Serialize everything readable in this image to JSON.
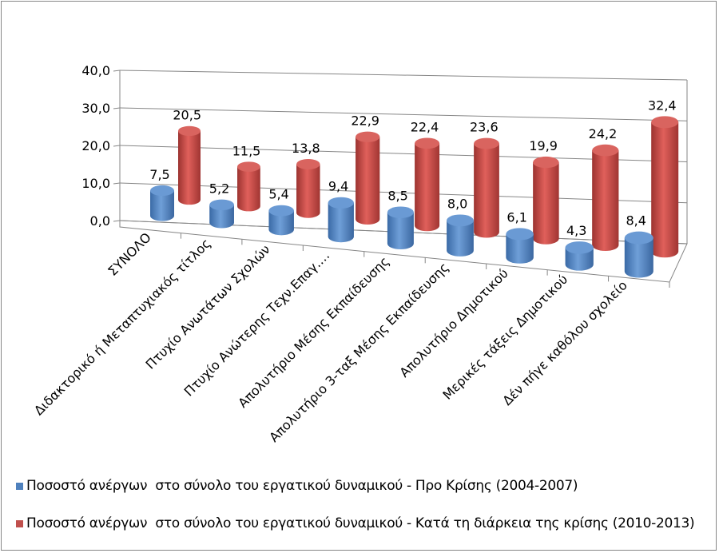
{
  "chart_data": {
    "type": "bar",
    "style": "3d-cylinder",
    "categories": [
      "ΣΥΝΟΛΟ",
      "Διδακτορικό ή Μεταπτυχιακός τίτλος",
      "Πτυχίο Ανωτάτων Σχολών",
      "Πτυχίο Ανώτερης Τεχν.Επαγ.…",
      "Απολυτήριο Μέσης Εκπαίδευσης",
      "Απολυτήριο 3-ταξ Μέσης Εκπαίδευσης",
      "Απολυτήριο Δημοτικού",
      "Μερικές τάξεις Δημοτικού",
      "Δέν πήγε καθόλου σχολείο"
    ],
    "series": [
      {
        "name": "Ποσοστό ανέργων  στο σύνολο του εργατικού δυναμικού - Προ Κρίσης (2004-2007)",
        "color": "#4f81bd",
        "values": [
          7.5,
          5.2,
          5.4,
          9.4,
          8.5,
          8.0,
          6.1,
          4.3,
          8.4
        ],
        "labels": [
          "7,5",
          "5,2",
          "5,4",
          "9,4",
          "8,5",
          "8,0",
          "6,1",
          "4,3",
          "8,4"
        ]
      },
      {
        "name": "Ποσοστό ανέργων  στο σύνολο του εργατικού δυναμικού - Κατά τη διάρκεια της κρίσης (2010-2013)",
        "color": "#c0504d",
        "values": [
          20.5,
          11.5,
          13.8,
          22.9,
          22.4,
          23.6,
          19.9,
          24.2,
          32.4
        ],
        "labels": [
          "20,5",
          "11,5",
          "13,8",
          "22,9",
          "22,4",
          "23,6",
          "19,9",
          "24,2",
          "32,4"
        ]
      }
    ],
    "yticks": [
      "0,0",
      "10,0",
      "20,0",
      "30,0",
      "40,0"
    ],
    "ylim": [
      0,
      40
    ],
    "grid": true,
    "legend_position": "bottom"
  }
}
